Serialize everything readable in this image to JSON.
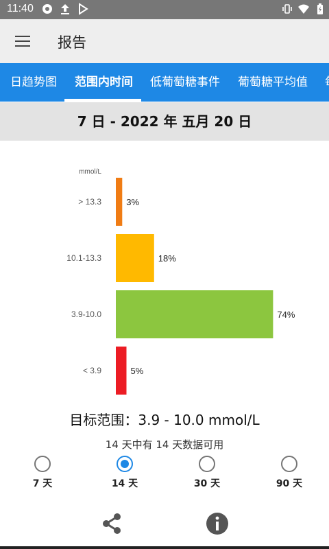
{
  "status_bar": {
    "time": "11:40"
  },
  "app_bar": {
    "title": "报告"
  },
  "tabs": [
    {
      "label": "日趋势图"
    },
    {
      "label": "范围内时间"
    },
    {
      "label": "低葡萄糖事件"
    },
    {
      "label": "葡萄糖平均值"
    },
    {
      "label": "每"
    }
  ],
  "active_tab": 1,
  "date_range": "7 日 - 2022 年 五月 20 日",
  "chart_data": {
    "type": "bar",
    "orientation": "horizontal",
    "unit_label": "mmol/L",
    "categories": [
      "> 13.3",
      "10.1-13.3",
      "3.9-10.0",
      "< 3.9"
    ],
    "values": [
      3,
      18,
      74,
      5
    ],
    "value_labels": [
      "3%",
      "18%",
      "74%",
      "5%"
    ],
    "colors": [
      "#f07c14",
      "#ffb900",
      "#8cc63f",
      "#ec1c24"
    ],
    "xlim": [
      0,
      100
    ],
    "grid": false
  },
  "target_range": {
    "label": "目标范围：",
    "value": "3.9 - 10.0 mmol/L"
  },
  "availability": "14 天中有 14 天数据可用",
  "period_options": [
    {
      "label": "7 天",
      "selected": false
    },
    {
      "label": "14 天",
      "selected": true
    },
    {
      "label": "30 天",
      "selected": false
    },
    {
      "label": "90 天",
      "selected": false
    }
  ],
  "icons": {
    "menu": "hamburger-menu-icon",
    "share": "share-icon",
    "info": "info-icon"
  }
}
